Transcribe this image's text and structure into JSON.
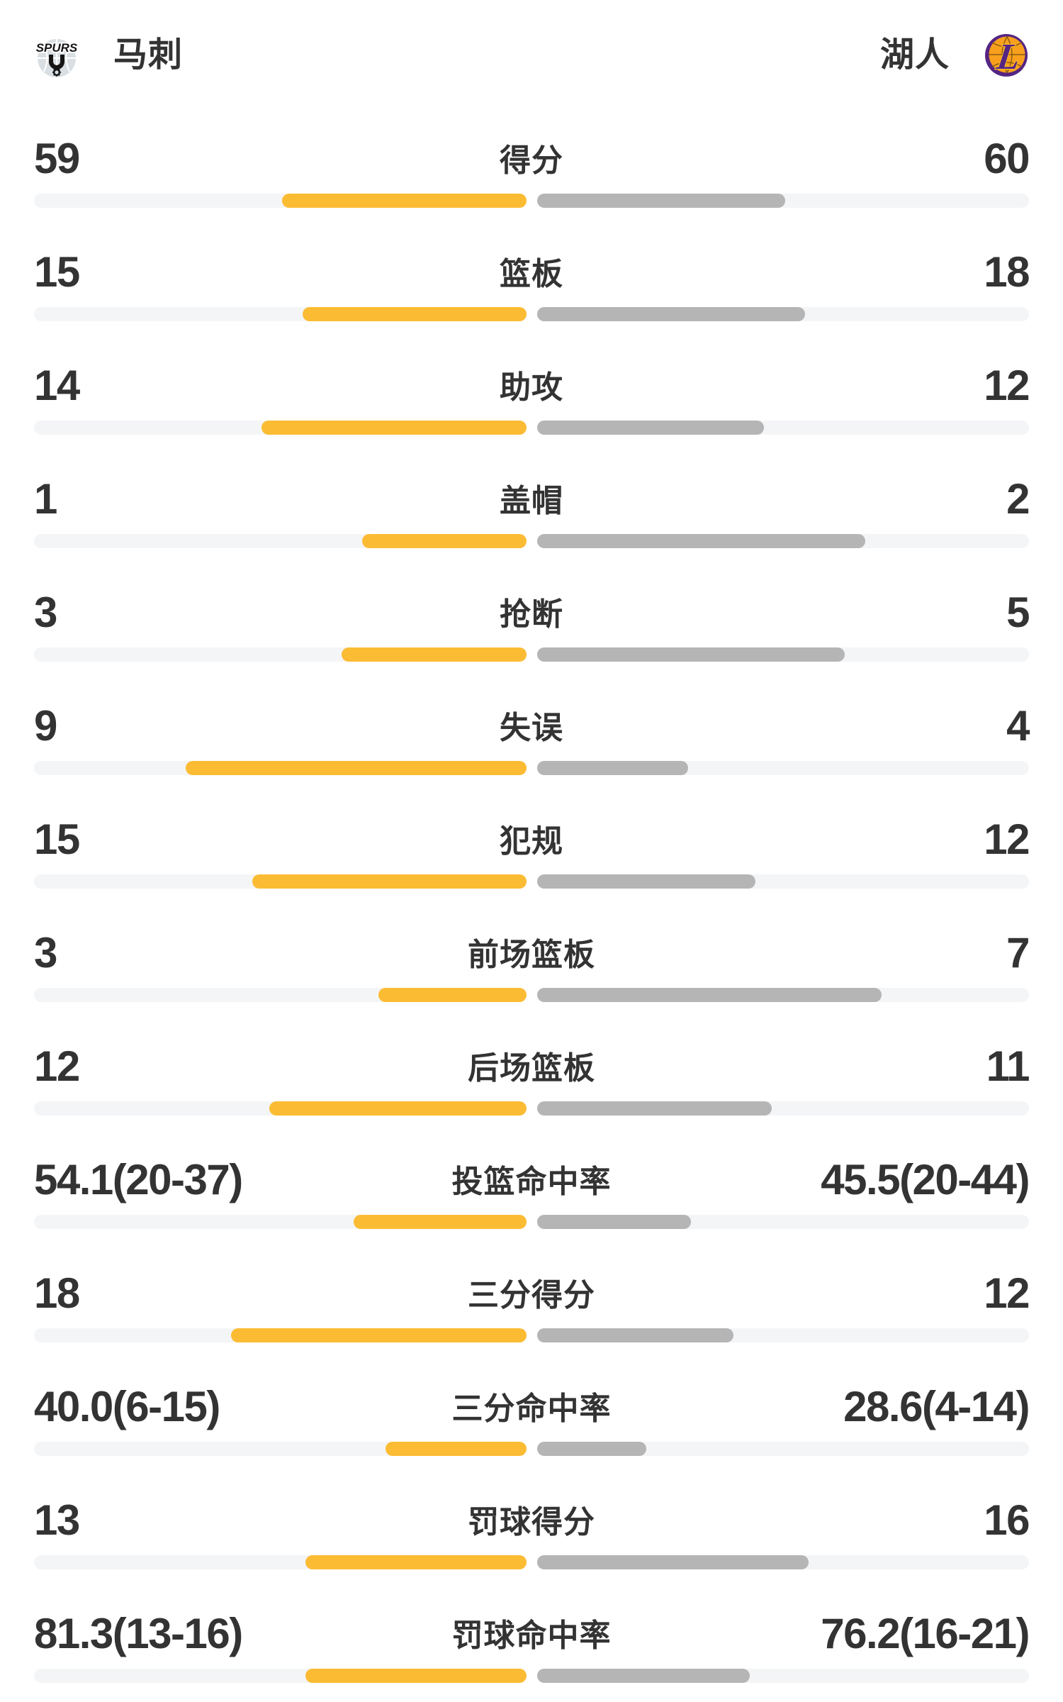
{
  "colors": {
    "home_bar": "#FBBC34",
    "away_bar": "#B5B5B5",
    "track": "#F4F5F7",
    "text": "#333333",
    "background": "#FFFFFF",
    "spurs_silver": "#D9DFE3",
    "spurs_black": "#151515",
    "lakers_purple": "#552583",
    "lakers_gold": "#FDB927",
    "lakers_orange": "#F8A01D"
  },
  "header": {
    "home": {
      "name": "马刺",
      "logo_icon": "spurs-logo"
    },
    "away": {
      "name": "湖人",
      "logo_icon": "lakers-logo"
    }
  },
  "chart_data": {
    "type": "bar",
    "orientation": "horizontal-paired",
    "legend_position": "header",
    "teams": [
      "马刺",
      "湖人"
    ],
    "categories": [
      "得分",
      "篮板",
      "助攻",
      "盖帽",
      "抢断",
      "失误",
      "犯规",
      "前场篮板",
      "后场篮板",
      "投篮命中率",
      "三分得分",
      "三分命中率",
      "罚球得分",
      "罚球命中率"
    ],
    "series": [
      {
        "name": "马刺",
        "values": [
          59,
          15,
          14,
          1,
          3,
          9,
          15,
          3,
          12,
          54.1,
          18,
          40.0,
          13,
          81.3
        ]
      },
      {
        "name": "湖人",
        "values": [
          60,
          18,
          12,
          2,
          5,
          4,
          12,
          7,
          11,
          45.5,
          12,
          28.6,
          16,
          76.2
        ]
      }
    ],
    "rows": [
      {
        "label": "得分",
        "home": "59",
        "away": "60",
        "home_bar_pct": 49.6,
        "away_bar_pct": 50.4
      },
      {
        "label": "篮板",
        "home": "15",
        "away": "18",
        "home_bar_pct": 45.5,
        "away_bar_pct": 54.5
      },
      {
        "label": "助攻",
        "home": "14",
        "away": "12",
        "home_bar_pct": 53.8,
        "away_bar_pct": 46.2
      },
      {
        "label": "盖帽",
        "home": "1",
        "away": "2",
        "home_bar_pct": 33.3,
        "away_bar_pct": 66.7
      },
      {
        "label": "抢断",
        "home": "3",
        "away": "5",
        "home_bar_pct": 37.5,
        "away_bar_pct": 62.5
      },
      {
        "label": "失误",
        "home": "9",
        "away": "4",
        "home_bar_pct": 69.2,
        "away_bar_pct": 30.8
      },
      {
        "label": "犯规",
        "home": "15",
        "away": "12",
        "home_bar_pct": 55.6,
        "away_bar_pct": 44.4
      },
      {
        "label": "前场篮板",
        "home": "3",
        "away": "7",
        "home_bar_pct": 30.0,
        "away_bar_pct": 70.0
      },
      {
        "label": "后场篮板",
        "home": "12",
        "away": "11",
        "home_bar_pct": 52.2,
        "away_bar_pct": 47.8
      },
      {
        "label": "投篮命中率",
        "home": "54.1(20-37)",
        "away": "45.5(20-44)",
        "home_bar_pct": 35.1,
        "away_bar_pct": 31.3
      },
      {
        "label": "三分得分",
        "home": "18",
        "away": "12",
        "home_bar_pct": 60.0,
        "away_bar_pct": 40.0
      },
      {
        "label": "三分命中率",
        "home": "40.0(6-15)",
        "away": "28.6(4-14)",
        "home_bar_pct": 28.6,
        "away_bar_pct": 22.2
      },
      {
        "label": "罚球得分",
        "home": "13",
        "away": "16",
        "home_bar_pct": 44.8,
        "away_bar_pct": 55.2
      },
      {
        "label": "罚球命中率",
        "home": "81.3(13-16)",
        "away": "76.2(16-21)",
        "home_bar_pct": 44.8,
        "away_bar_pct": 43.2
      }
    ]
  }
}
